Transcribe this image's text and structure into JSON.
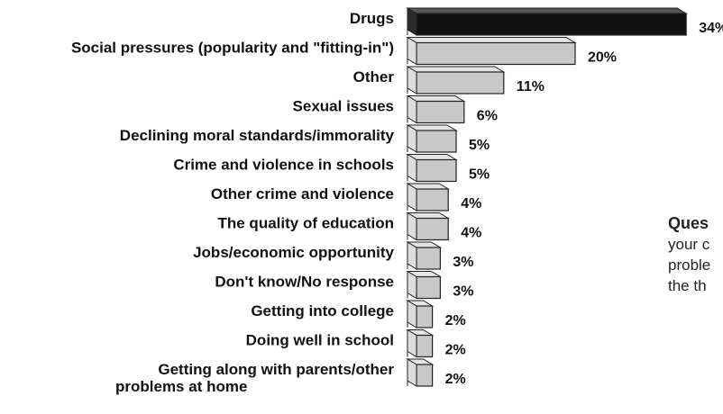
{
  "chart_data": {
    "type": "bar",
    "orientation": "horizontal",
    "categories": [
      "Drugs",
      "Social pressures (popularity and \"fitting-in\")",
      "Other",
      "Sexual issues",
      "Declining moral standards/immorality",
      "Crime and violence in schools",
      "Other crime and violence",
      "The quality of education",
      "Jobs/economic opportunity",
      "Don't know/No response",
      "Getting into college",
      "Doing well in school",
      "Getting along with parents/other problems at home"
    ],
    "category_lines": [
      [
        "Drugs"
      ],
      [
        "Social pressures (popularity and \"fitting-in\")"
      ],
      [
        "Other"
      ],
      [
        "Sexual issues"
      ],
      [
        "Declining moral standards/immorality"
      ],
      [
        "Crime and violence in schools"
      ],
      [
        "Other crime and violence"
      ],
      [
        "The quality of education"
      ],
      [
        "Jobs/economic opportunity"
      ],
      [
        "Don't know/No response"
      ],
      [
        "Getting into college"
      ],
      [
        "Doing well in school"
      ],
      [
        "Getting along with parents/other",
        "problems at home"
      ]
    ],
    "values": [
      34,
      20,
      11,
      6,
      5,
      5,
      4,
      4,
      3,
      3,
      2,
      2,
      2
    ],
    "value_labels": [
      "34%",
      "20%",
      "11%",
      "6%",
      "5%",
      "5%",
      "4%",
      "4%",
      "3%",
      "3%",
      "2%",
      "2%",
      "2%"
    ],
    "highlight_index": 0,
    "colors": {
      "highlight": "#111111",
      "bar": "#c8c8c8",
      "bar_side": "#9a9a9a",
      "bar_top": "#e4e4e4",
      "outline": "#222222"
    }
  },
  "question": {
    "title": "Ques",
    "lines": [
      "your c",
      "proble",
      "the th"
    ]
  }
}
